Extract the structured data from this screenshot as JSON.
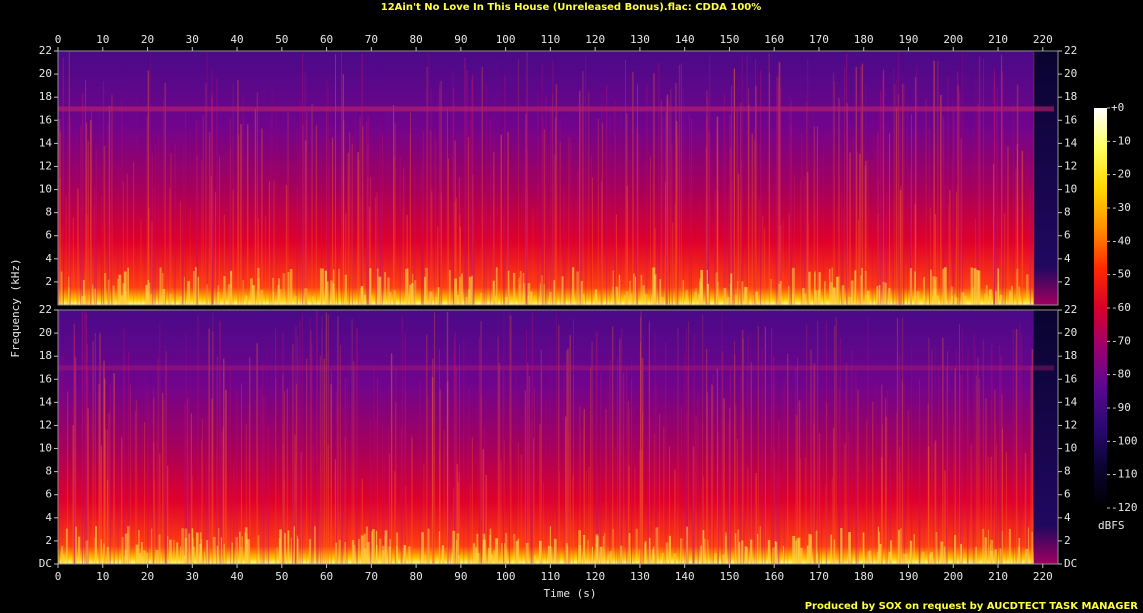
{
  "chart_data": {
    "type": "spectrogram",
    "title": "12Ain't No Love In This House (Unreleased Bonus).flac: CDDA 100%",
    "x_label": "Time (s)",
    "y_label": "Frequency (kHz)",
    "colorbar_label": "dBFS",
    "footer": "Produced by SOX on request by AUCDTECT TASK MANAGER",
    "xlim": [
      0,
      223.4
    ],
    "xticks": [
      0,
      10,
      20,
      30,
      40,
      50,
      60,
      70,
      80,
      90,
      100,
      110,
      120,
      130,
      140,
      150,
      160,
      170,
      180,
      190,
      200,
      210,
      220
    ],
    "channels": [
      {
        "ylim": [
          0,
          22
        ],
        "yticks": [
          2,
          4,
          6,
          8,
          10,
          12,
          14,
          16,
          18,
          20,
          22
        ]
      },
      {
        "ylim": [
          0,
          22
        ],
        "yticks": [
          {
            "value": 0,
            "label": "DC"
          },
          2,
          4,
          6,
          8,
          10,
          12,
          14,
          16,
          18,
          20,
          22
        ]
      }
    ],
    "colorbar": {
      "lim": [
        -120,
        0
      ],
      "ticks": [
        {
          "value": 0,
          "label": "+0"
        },
        -10,
        -20,
        -30,
        -40,
        -50,
        -60,
        -70,
        -80,
        -90,
        -100,
        -110,
        -120
      ],
      "colors": [
        "#000000",
        "#0a0430",
        "#2a0870",
        "#5a0890",
        "#9a0070",
        "#d8002a",
        "#ff2a00",
        "#ff9000",
        "#ffd800",
        "#ffff60",
        "#ffffff"
      ]
    }
  }
}
